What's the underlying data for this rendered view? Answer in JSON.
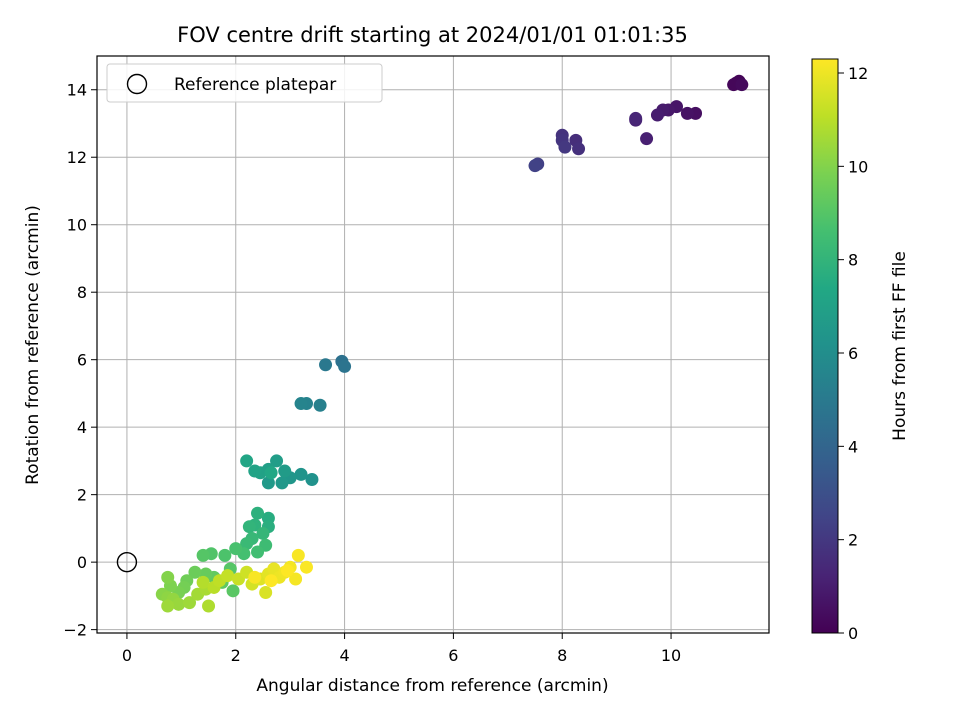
{
  "chart_data": {
    "type": "scatter",
    "title": "FOV centre drift starting at 2024/01/01 01:01:35",
    "xlabel": "Angular distance from reference (arcmin)",
    "ylabel": "Rotation from reference (arcmin)",
    "xlim": [
      -0.55,
      11.8
    ],
    "ylim": [
      -2.1,
      15.0
    ],
    "xticks": [
      0,
      2,
      4,
      6,
      8,
      10
    ],
    "yticks": [
      -2,
      0,
      2,
      4,
      6,
      8,
      10,
      12,
      14
    ],
    "grid": true,
    "legend_position": "top-left",
    "reference": {
      "name": "Reference platepar",
      "x": 0,
      "y": 0
    },
    "colorbar": {
      "label": "Hours from first FF file",
      "colormap": "viridis",
      "min": 0,
      "max": 12.3,
      "ticks": [
        0,
        2,
        4,
        6,
        8,
        10,
        12
      ]
    },
    "series": [
      {
        "points": [
          {
            "x": 11.2,
            "y": 14.2,
            "c": 0.0
          },
          {
            "x": 11.25,
            "y": 14.25,
            "c": 0.1
          },
          {
            "x": 11.15,
            "y": 14.15,
            "c": 0.2
          },
          {
            "x": 11.3,
            "y": 14.15,
            "c": 0.3
          },
          {
            "x": 10.45,
            "y": 13.3,
            "c": 0.5
          },
          {
            "x": 10.3,
            "y": 13.3,
            "c": 0.6
          },
          {
            "x": 10.1,
            "y": 13.5,
            "c": 0.7
          },
          {
            "x": 9.95,
            "y": 13.4,
            "c": 0.8
          },
          {
            "x": 9.85,
            "y": 13.4,
            "c": 0.9
          },
          {
            "x": 9.75,
            "y": 13.25,
            "c": 1.0
          },
          {
            "x": 9.55,
            "y": 12.55,
            "c": 1.1
          },
          {
            "x": 9.35,
            "y": 13.1,
            "c": 1.2
          },
          {
            "x": 9.35,
            "y": 13.15,
            "c": 1.3
          },
          {
            "x": 8.25,
            "y": 12.5,
            "c": 1.6
          },
          {
            "x": 8.3,
            "y": 12.25,
            "c": 1.7
          },
          {
            "x": 8.0,
            "y": 12.65,
            "c": 1.8
          },
          {
            "x": 8.0,
            "y": 12.5,
            "c": 1.9
          },
          {
            "x": 8.05,
            "y": 12.3,
            "c": 2.0
          },
          {
            "x": 7.55,
            "y": 11.8,
            "c": 2.3
          },
          {
            "x": 7.5,
            "y": 11.75,
            "c": 2.4
          },
          {
            "x": 3.95,
            "y": 5.95,
            "c": 4.6
          },
          {
            "x": 4.0,
            "y": 5.8,
            "c": 4.7
          },
          {
            "x": 3.65,
            "y": 5.85,
            "c": 4.9
          },
          {
            "x": 3.55,
            "y": 4.65,
            "c": 5.3
          },
          {
            "x": 3.3,
            "y": 4.7,
            "c": 5.4
          },
          {
            "x": 3.2,
            "y": 4.7,
            "c": 5.5
          },
          {
            "x": 3.4,
            "y": 2.45,
            "c": 6.2
          },
          {
            "x": 3.2,
            "y": 2.6,
            "c": 6.3
          },
          {
            "x": 3.0,
            "y": 2.5,
            "c": 6.4
          },
          {
            "x": 2.85,
            "y": 2.35,
            "c": 6.5
          },
          {
            "x": 2.6,
            "y": 2.35,
            "c": 6.6
          },
          {
            "x": 2.9,
            "y": 2.7,
            "c": 6.7
          },
          {
            "x": 2.75,
            "y": 3.0,
            "c": 6.8
          },
          {
            "x": 2.6,
            "y": 2.75,
            "c": 6.9
          },
          {
            "x": 2.45,
            "y": 2.65,
            "c": 7.0
          },
          {
            "x": 2.35,
            "y": 2.7,
            "c": 7.1
          },
          {
            "x": 2.2,
            "y": 3.0,
            "c": 7.2
          },
          {
            "x": 2.65,
            "y": 2.65,
            "c": 7.3
          },
          {
            "x": 2.6,
            "y": 1.3,
            "c": 7.6
          },
          {
            "x": 2.6,
            "y": 1.05,
            "c": 7.7
          },
          {
            "x": 2.4,
            "y": 1.45,
            "c": 7.8
          },
          {
            "x": 2.35,
            "y": 1.1,
            "c": 7.9
          },
          {
            "x": 2.25,
            "y": 1.05,
            "c": 8.0
          },
          {
            "x": 2.5,
            "y": 0.85,
            "c": 8.1
          },
          {
            "x": 2.3,
            "y": 0.7,
            "c": 8.2
          },
          {
            "x": 2.2,
            "y": 0.55,
            "c": 8.3
          },
          {
            "x": 2.55,
            "y": 0.5,
            "c": 8.4
          },
          {
            "x": 2.4,
            "y": 0.3,
            "c": 8.5
          },
          {
            "x": 2.15,
            "y": 0.25,
            "c": 8.6
          },
          {
            "x": 2.0,
            "y": 0.4,
            "c": 8.7
          },
          {
            "x": 1.8,
            "y": 0.2,
            "c": 8.8
          },
          {
            "x": 1.55,
            "y": 0.25,
            "c": 8.9
          },
          {
            "x": 1.4,
            "y": 0.2,
            "c": 9.0
          },
          {
            "x": 1.9,
            "y": -0.2,
            "c": 9.0
          },
          {
            "x": 1.95,
            "y": -0.85,
            "c": 9.1
          },
          {
            "x": 1.75,
            "y": -0.6,
            "c": 9.2
          },
          {
            "x": 1.6,
            "y": -0.45,
            "c": 9.3
          },
          {
            "x": 1.45,
            "y": -0.35,
            "c": 9.4
          },
          {
            "x": 1.25,
            "y": -0.3,
            "c": 9.5
          },
          {
            "x": 1.1,
            "y": -0.55,
            "c": 9.6
          },
          {
            "x": 1.05,
            "y": -0.75,
            "c": 9.7
          },
          {
            "x": 0.95,
            "y": -0.9,
            "c": 9.8
          },
          {
            "x": 0.8,
            "y": -0.7,
            "c": 9.9
          },
          {
            "x": 0.75,
            "y": -0.45,
            "c": 10.0
          },
          {
            "x": 0.65,
            "y": -0.95,
            "c": 10.1
          },
          {
            "x": 0.75,
            "y": -1.05,
            "c": 10.2
          },
          {
            "x": 0.85,
            "y": -1.1,
            "c": 10.3
          },
          {
            "x": 0.95,
            "y": -1.25,
            "c": 10.4
          },
          {
            "x": 0.75,
            "y": -1.3,
            "c": 10.5
          },
          {
            "x": 1.15,
            "y": -1.2,
            "c": 10.5
          },
          {
            "x": 1.3,
            "y": -0.95,
            "c": 10.6
          },
          {
            "x": 1.45,
            "y": -0.8,
            "c": 10.7
          },
          {
            "x": 1.5,
            "y": -1.3,
            "c": 10.8
          },
          {
            "x": 1.4,
            "y": -0.6,
            "c": 10.9
          },
          {
            "x": 1.6,
            "y": -0.75,
            "c": 11.0
          },
          {
            "x": 1.7,
            "y": -0.55,
            "c": 11.1
          },
          {
            "x": 1.85,
            "y": -0.4,
            "c": 11.2
          },
          {
            "x": 2.05,
            "y": -0.5,
            "c": 11.3
          },
          {
            "x": 2.2,
            "y": -0.3,
            "c": 11.4
          },
          {
            "x": 2.3,
            "y": -0.65,
            "c": 11.5
          },
          {
            "x": 2.55,
            "y": -0.9,
            "c": 11.6
          },
          {
            "x": 2.45,
            "y": -0.5,
            "c": 11.7
          },
          {
            "x": 2.6,
            "y": -0.35,
            "c": 11.8
          },
          {
            "x": 2.7,
            "y": -0.2,
            "c": 11.9
          },
          {
            "x": 2.8,
            "y": -0.45,
            "c": 12.0
          },
          {
            "x": 2.9,
            "y": -0.3,
            "c": 12.05
          },
          {
            "x": 3.0,
            "y": -0.15,
            "c": 12.1
          },
          {
            "x": 3.1,
            "y": -0.5,
            "c": 12.15
          },
          {
            "x": 3.15,
            "y": 0.2,
            "c": 12.2
          },
          {
            "x": 3.3,
            "y": -0.15,
            "c": 12.25
          },
          {
            "x": 2.95,
            "y": -0.25,
            "c": 12.3
          },
          {
            "x": 2.65,
            "y": -0.55,
            "c": 12.3
          },
          {
            "x": 2.35,
            "y": -0.45,
            "c": 12.2
          }
        ]
      }
    ]
  }
}
